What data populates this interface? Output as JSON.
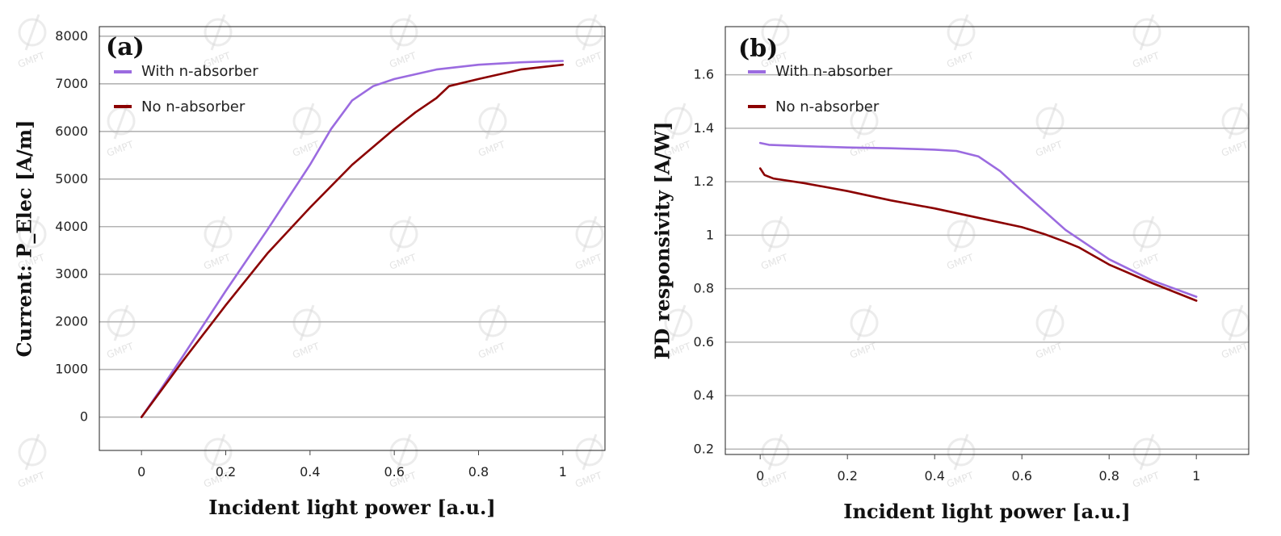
{
  "watermark": {
    "text": "GMPT"
  },
  "chart_data": [
    {
      "type": "line",
      "panel_label": "(a)",
      "xlabel": "Incident light power [a.u.]",
      "ylabel": "Current: P_Elec [A/m]",
      "xlim": [
        -0.1,
        1.1
      ],
      "ylim": [
        -700,
        8200
      ],
      "xticks": [
        0,
        0.2,
        0.4,
        0.6,
        0.8,
        1
      ],
      "xtick_labels": [
        "0",
        "0.2",
        "0.4",
        "0.6",
        "0.8",
        "1"
      ],
      "yticks": [
        0,
        1000,
        2000,
        3000,
        4000,
        5000,
        6000,
        7000,
        8000
      ],
      "ytick_labels": [
        "0",
        "1000",
        "2000",
        "3000",
        "4000",
        "5000",
        "6000",
        "7000",
        "8000"
      ],
      "grid": "horizontal",
      "legend_position": "top-left",
      "series": [
        {
          "name": "With n-absorber",
          "color": "#9b6be0",
          "x": [
            0,
            0.05,
            0.1,
            0.2,
            0.3,
            0.4,
            0.45,
            0.5,
            0.55,
            0.6,
            0.65,
            0.7,
            0.8,
            0.9,
            1.0
          ],
          "y": [
            0,
            640,
            1300,
            2650,
            3950,
            5300,
            6050,
            6650,
            6950,
            7100,
            7200,
            7300,
            7400,
            7450,
            7480
          ]
        },
        {
          "name": "No n-absorber",
          "color": "#8b0000",
          "x": [
            0,
            0.05,
            0.1,
            0.2,
            0.3,
            0.4,
            0.5,
            0.6,
            0.65,
            0.7,
            0.73,
            0.8,
            0.9,
            1.0
          ],
          "y": [
            0,
            600,
            1200,
            2350,
            3450,
            4400,
            5300,
            6050,
            6400,
            6700,
            6950,
            7100,
            7300,
            7400
          ]
        }
      ]
    },
    {
      "type": "line",
      "panel_label": "(b)",
      "xlabel": "Incident light power [a.u.]",
      "ylabel": "PD responsivity [A/W]",
      "xlim": [
        -0.08,
        1.12
      ],
      "ylim": [
        0.18,
        1.78
      ],
      "xticks": [
        0,
        0.2,
        0.4,
        0.6,
        0.8,
        1
      ],
      "xtick_labels": [
        "0",
        "0.2",
        "0.4",
        "0.6",
        "0.8",
        "1"
      ],
      "yticks": [
        0.2,
        0.4,
        0.6,
        0.8,
        1,
        1.2,
        1.4,
        1.6
      ],
      "ytick_labels": [
        "0.2",
        "0.4",
        "0.6",
        "0.8",
        "1",
        "1.2",
        "1.4",
        "1.6"
      ],
      "grid": "horizontal",
      "legend_position": "top-left",
      "series": [
        {
          "name": "With n-absorber",
          "color": "#9b6be0",
          "x": [
            0,
            0.02,
            0.1,
            0.2,
            0.3,
            0.4,
            0.45,
            0.5,
            0.55,
            0.6,
            0.7,
            0.8,
            0.9,
            1.0
          ],
          "y": [
            1.345,
            1.338,
            1.333,
            1.328,
            1.325,
            1.32,
            1.315,
            1.295,
            1.24,
            1.165,
            1.02,
            0.91,
            0.83,
            0.77
          ]
        },
        {
          "name": "No n-absorber",
          "color": "#8b0000",
          "x": [
            0,
            0.01,
            0.03,
            0.1,
            0.2,
            0.3,
            0.4,
            0.5,
            0.6,
            0.65,
            0.7,
            0.73,
            0.8,
            0.9,
            1.0
          ],
          "y": [
            1.25,
            1.225,
            1.212,
            1.195,
            1.165,
            1.13,
            1.1,
            1.065,
            1.03,
            1.005,
            0.975,
            0.955,
            0.89,
            0.82,
            0.755
          ]
        }
      ]
    }
  ]
}
